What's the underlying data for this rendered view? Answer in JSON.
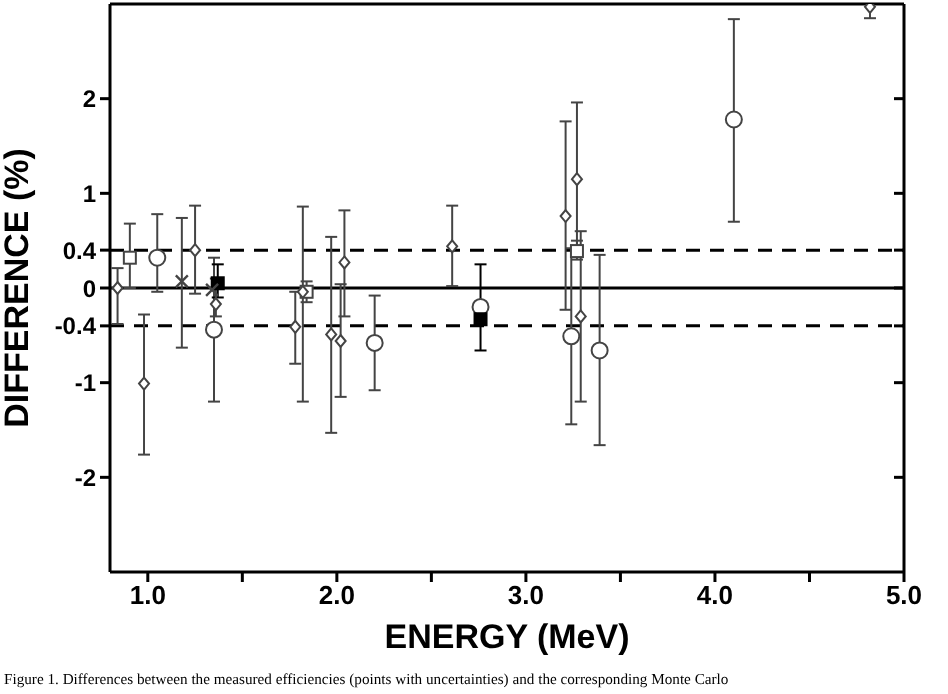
{
  "chart_data": {
    "type": "scatter",
    "xlabel": "ENERGY (MeV)",
    "ylabel": "DIFFERENCE (%)",
    "annotations": [
      "Figure 1. Differences between the measured efficiencies (points with uncertainties) and the corresponding Monte Carlo"
    ],
    "xlim": [
      0.8,
      5
    ],
    "ylim": [
      -3,
      3
    ],
    "xticks": [
      {
        "value": 1,
        "label": "1.0"
      },
      {
        "value": 1.5,
        "label": null
      },
      {
        "value": 2,
        "label": "2.0"
      },
      {
        "value": 2.5,
        "label": null
      },
      {
        "value": 3,
        "label": "3.0"
      },
      {
        "value": 3.5,
        "label": null
      },
      {
        "value": 4,
        "label": "4.0"
      },
      {
        "value": 4.5,
        "label": null
      },
      {
        "value": 5,
        "label": "5.0"
      }
    ],
    "yticks": [
      -2,
      {
        "value": -1,
        "label": "-1"
      },
      {
        "value": -0.4,
        "label": "-0.4"
      },
      0,
      0.4,
      1,
      2
    ],
    "ref_lines": [
      {
        "axis": "y",
        "value": 0,
        "color": "#000000",
        "line_style": "solid"
      },
      {
        "axis": "y",
        "value": 0.4,
        "color": "#000000",
        "line_style": "dashed"
      },
      {
        "axis": "y",
        "value": -0.4,
        "color": "#000000",
        "line_style": "dashed"
      }
    ],
    "series": [
      {
        "marker": "circle",
        "color": "#444444",
        "x": [
          1.05,
          1.35,
          2.2,
          2.76,
          3.24,
          3.39,
          4.1
        ],
        "values": [
          0.32,
          -0.44,
          -0.58,
          -0.2,
          -0.51,
          -0.66,
          1.78
        ],
        "errors": [
          [
            -0.04,
            0.78
          ],
          [
            -1.2,
            0.32
          ],
          [
            -1.08,
            -0.08
          ],
          null,
          [
            -1.44,
            0.42
          ],
          [
            -1.66,
            0.35
          ],
          [
            0.7,
            2.84
          ]
        ]
      },
      {
        "marker": "square",
        "color": "#444444",
        "x": [
          0.905,
          1.84,
          3.27
        ],
        "values": [
          0.32,
          -0.04,
          0.39
        ],
        "errors": [
          [
            0,
            0.68
          ],
          [
            -0.15,
            0.07
          ],
          [
            0.3,
            0.5
          ]
        ]
      },
      {
        "marker": "square",
        "color": "#000000",
        "x": [
          1.37,
          2.76
        ],
        "values": [
          0.05,
          -0.33
        ],
        "errors": [
          [
            -0.1,
            0.25
          ],
          [
            -0.66,
            0.25
          ]
        ]
      },
      {
        "marker": "cross",
        "color": "#444444",
        "x": [
          1.18,
          1.34
        ],
        "values": [
          0.07,
          -0.02
        ],
        "errors": [
          [
            -0.63,
            0.74
          ],
          null
        ]
      },
      {
        "marker": "diamond",
        "color": "#444444",
        "x": [
          0.84,
          0.98,
          1.25,
          1.36,
          1.78,
          1.82,
          1.97,
          2.02,
          2.04,
          2.61,
          3.21,
          3.27,
          3.29,
          4.82
        ],
        "values": [
          0,
          -1.01,
          0.4,
          -0.17,
          -0.41,
          -0.04,
          -0.49,
          -0.56,
          0.27,
          0.44,
          0.76,
          1.15,
          -0.3,
          2.97
        ],
        "errors": [
          [
            -0.38,
            0.21
          ],
          [
            -1.76,
            -0.28
          ],
          [
            -0.06,
            0.87
          ],
          [
            -0.3,
            0.1
          ],
          [
            -0.8,
            -0.04
          ],
          [
            -1.2,
            0.86
          ],
          [
            -1.53,
            0.54
          ],
          [
            -1.15,
            0.04
          ],
          [
            -0.3,
            0.82
          ],
          [
            0.02,
            0.87
          ],
          [
            -0.23,
            1.76
          ],
          [
            0.35,
            1.96
          ],
          [
            -1.2,
            0.6
          ],
          [
            2.85,
            3
          ]
        ]
      }
    ]
  }
}
